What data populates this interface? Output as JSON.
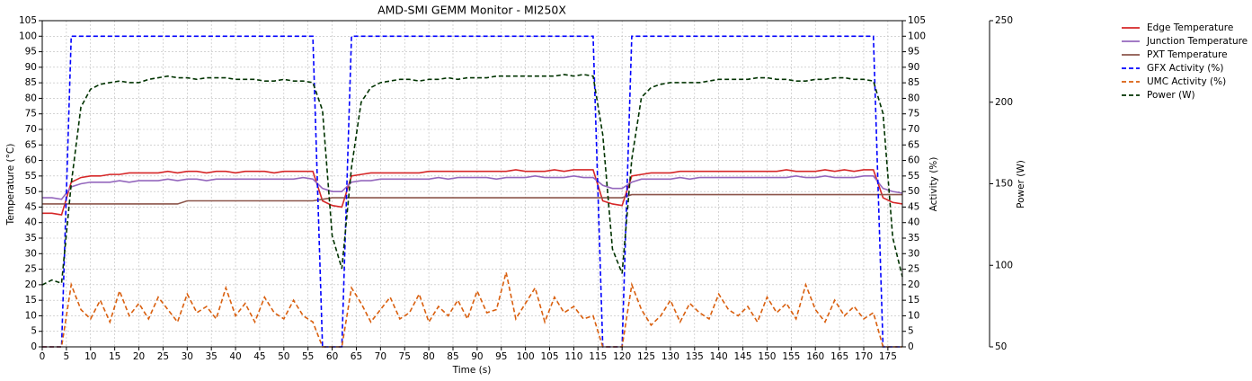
{
  "chart_data": {
    "type": "line",
    "title": "AMD-SMI GEMM Monitor - MI250X",
    "xlabel": "Time (s)",
    "ylabel": "Temperature (°C)",
    "y2label": "Activity (%)",
    "y3label": "Power (W)",
    "ycolor": "#d62728",
    "y2color": "#0000ff",
    "y3color": "#003300",
    "grid": true,
    "legend": "outside right",
    "xlim": [
      0,
      178
    ],
    "xticks": [
      0,
      5,
      10,
      15,
      20,
      25,
      30,
      35,
      40,
      45,
      50,
      55,
      60,
      65,
      70,
      75,
      80,
      85,
      90,
      95,
      100,
      105,
      110,
      115,
      120,
      125,
      130,
      135,
      140,
      145,
      150,
      155,
      160,
      165,
      170,
      175
    ],
    "ylim": [
      0,
      105
    ],
    "yticks": [
      0,
      5,
      10,
      15,
      20,
      25,
      30,
      35,
      40,
      45,
      50,
      55,
      60,
      65,
      70,
      75,
      80,
      85,
      90,
      95,
      100,
      105
    ],
    "y2lim": [
      0,
      105
    ],
    "y2ticks": [
      0,
      5,
      10,
      15,
      20,
      25,
      30,
      35,
      40,
      45,
      50,
      55,
      60,
      65,
      70,
      75,
      80,
      85,
      90,
      95,
      100,
      105
    ],
    "y3lim": [
      50,
      250
    ],
    "y3ticks": [
      50,
      100,
      150,
      200,
      250
    ],
    "x": [
      0,
      2,
      4,
      6,
      8,
      10,
      12,
      14,
      16,
      18,
      20,
      22,
      24,
      26,
      28,
      30,
      32,
      34,
      36,
      38,
      40,
      42,
      44,
      46,
      48,
      50,
      52,
      54,
      56,
      58,
      60,
      62,
      64,
      66,
      68,
      70,
      72,
      74,
      76,
      78,
      80,
      82,
      84,
      86,
      88,
      90,
      92,
      94,
      96,
      98,
      100,
      102,
      104,
      106,
      108,
      110,
      112,
      114,
      116,
      118,
      120,
      122,
      124,
      126,
      128,
      130,
      132,
      134,
      136,
      138,
      140,
      142,
      144,
      146,
      148,
      150,
      152,
      154,
      156,
      158,
      160,
      162,
      164,
      166,
      168,
      170,
      172,
      174,
      176,
      178
    ],
    "series": [
      {
        "name": "Edge Temperature",
        "color": "#d62728",
        "style": "solid",
        "axis": "y",
        "values": [
          43,
          43,
          42.5,
          53,
          54.5,
          55,
          55,
          55.5,
          55.5,
          56,
          56,
          56,
          56,
          56.5,
          56,
          56.5,
          56.5,
          56,
          56.5,
          56.5,
          56,
          56.5,
          56.5,
          56.5,
          56,
          56.5,
          56.5,
          56.5,
          56.5,
          47,
          45.5,
          45,
          55,
          55.5,
          56,
          56,
          56,
          56,
          56,
          56,
          56.5,
          56.5,
          56.5,
          56.5,
          56.5,
          56.5,
          56.5,
          56.5,
          56.5,
          57,
          56.5,
          56.5,
          56.5,
          57,
          56.5,
          57,
          57,
          57,
          47,
          46,
          45.5,
          55,
          55.5,
          56,
          56,
          56,
          56.5,
          56.5,
          56.5,
          56.5,
          56.5,
          56.5,
          56.5,
          56.5,
          56.5,
          56.5,
          56.5,
          57,
          56.5,
          56.5,
          56.5,
          57,
          56.5,
          57,
          56.5,
          57,
          57,
          48,
          46.5,
          46
        ]
      },
      {
        "name": "Junction Temperature",
        "color": "#9467bd",
        "style": "solid",
        "axis": "y",
        "values": [
          48,
          48,
          47.5,
          51.5,
          52.5,
          53,
          53,
          53,
          53.5,
          53,
          53.5,
          53.5,
          53.5,
          54,
          53.5,
          54,
          54,
          53.5,
          54,
          54,
          54,
          54,
          54,
          54,
          54,
          54,
          54,
          54.5,
          54,
          51,
          50,
          50,
          53,
          53.5,
          53.5,
          54,
          54,
          54,
          54,
          54,
          54,
          54.5,
          54,
          54.5,
          54.5,
          54.5,
          54.5,
          54,
          54.5,
          54.5,
          54.5,
          55,
          54.5,
          54.5,
          54.5,
          55,
          54.5,
          54.5,
          52,
          51,
          51,
          53,
          54,
          54,
          54,
          54,
          54.5,
          54,
          54.5,
          54.5,
          54.5,
          54.5,
          54.5,
          54.5,
          54.5,
          54.5,
          54.5,
          54.5,
          55,
          54.5,
          54.5,
          55,
          54.5,
          54.5,
          54.5,
          55,
          55,
          51,
          50,
          49.5
        ]
      },
      {
        "name": "PXT Temperature",
        "color": "#8c564b",
        "style": "solid",
        "axis": "y",
        "values": [
          46,
          46,
          46,
          46,
          46,
          46,
          46,
          46,
          46,
          46,
          46,
          46,
          46,
          46,
          46,
          47,
          47,
          47,
          47,
          47,
          47,
          47,
          47,
          47,
          47,
          47,
          47,
          47,
          47,
          47.5,
          48,
          48,
          48,
          48,
          48,
          48,
          48,
          48,
          48,
          48,
          48,
          48,
          48,
          48,
          48,
          48,
          48,
          48,
          48,
          48,
          48,
          48,
          48,
          48,
          48,
          48,
          48,
          48,
          48,
          48,
          48,
          49,
          49,
          49,
          49,
          49,
          49,
          49,
          49,
          49,
          49,
          49,
          49,
          49,
          49,
          49,
          49,
          49,
          49,
          49,
          49,
          49,
          49,
          49,
          49,
          49,
          49,
          49,
          49,
          49
        ]
      },
      {
        "name": "GFX Activity (%)",
        "color": "#0000ff",
        "style": "dashed",
        "axis": "y2",
        "values": [
          0,
          0,
          0,
          100,
          100,
          100,
          100,
          100,
          100,
          100,
          100,
          100,
          100,
          100,
          100,
          100,
          100,
          100,
          100,
          100,
          100,
          100,
          100,
          100,
          100,
          100,
          100,
          100,
          100,
          0,
          0,
          0,
          100,
          100,
          100,
          100,
          100,
          100,
          100,
          100,
          100,
          100,
          100,
          100,
          100,
          100,
          100,
          100,
          100,
          100,
          100,
          100,
          100,
          100,
          100,
          100,
          100,
          100,
          0,
          0,
          0,
          100,
          100,
          100,
          100,
          100,
          100,
          100,
          100,
          100,
          100,
          100,
          100,
          100,
          100,
          100,
          100,
          100,
          100,
          100,
          100,
          100,
          100,
          100,
          100,
          100,
          100,
          0,
          0,
          0
        ]
      },
      {
        "name": "UMC Activity (%)",
        "color": "#d95f0e",
        "style": "dashed",
        "axis": "y2",
        "values": [
          0,
          0,
          0,
          20,
          12,
          9,
          15,
          8,
          18,
          10,
          14,
          9,
          16,
          12,
          8,
          17,
          11,
          13,
          9,
          19,
          10,
          14,
          8,
          16,
          11,
          9,
          15,
          10,
          8,
          0,
          0,
          0,
          19,
          14,
          8,
          12,
          16,
          9,
          11,
          17,
          8,
          13,
          10,
          15,
          9,
          18,
          11,
          12,
          24,
          9,
          14,
          19,
          8,
          16,
          11,
          13,
          9,
          10,
          0,
          0,
          0,
          20,
          12,
          7,
          10,
          15,
          8,
          14,
          11,
          9,
          17,
          12,
          10,
          13,
          8,
          16,
          11,
          14,
          9,
          20,
          12,
          8,
          15,
          10,
          13,
          9,
          11,
          0,
          0,
          0
        ]
      },
      {
        "name": "Power (W)",
        "color": "#003300",
        "style": "dashed",
        "axis": "y3",
        "values": [
          88,
          91,
          89,
          150,
          197,
          208,
          211,
          212,
          213,
          212,
          212,
          214,
          215,
          216,
          215,
          215,
          214,
          215,
          215,
          215,
          214,
          214,
          214,
          213,
          213,
          214,
          213,
          213,
          212,
          195,
          118,
          98,
          160,
          200,
          209,
          212,
          213,
          214,
          214,
          213,
          214,
          214,
          215,
          214,
          215,
          215,
          215,
          216,
          216,
          216,
          216,
          216,
          216,
          216,
          217,
          216,
          217,
          216,
          180,
          110,
          95,
          165,
          203,
          209,
          211,
          212,
          212,
          212,
          212,
          213,
          214,
          214,
          214,
          214,
          215,
          215,
          214,
          214,
          213,
          213,
          214,
          214,
          215,
          215,
          214,
          214,
          213,
          193,
          117,
          93
        ]
      }
    ]
  }
}
